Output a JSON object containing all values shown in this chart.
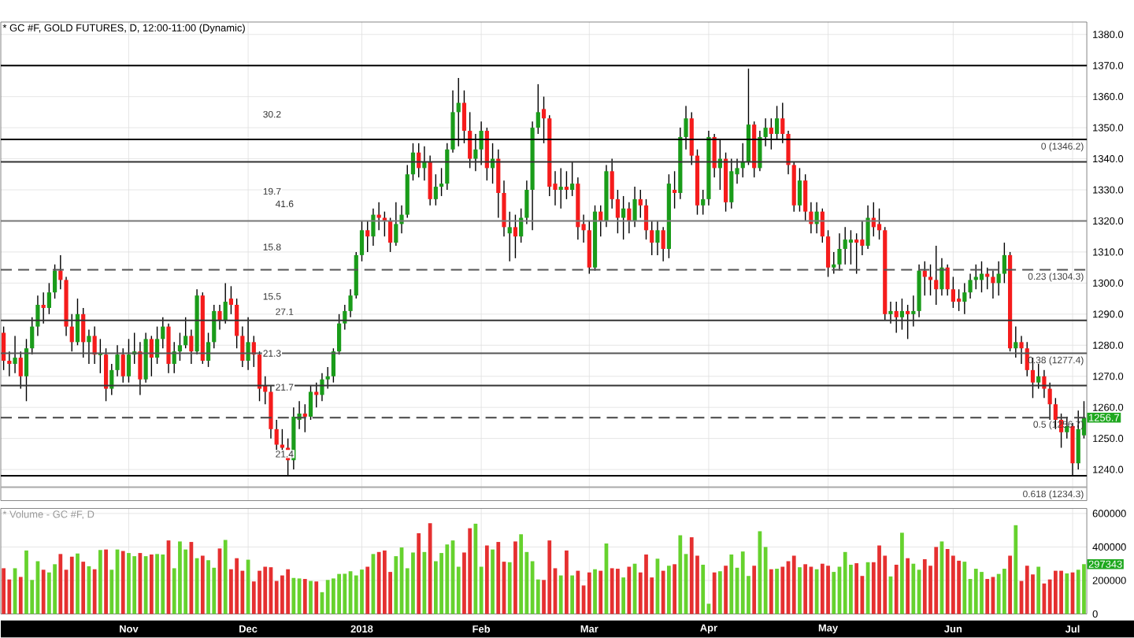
{
  "chart_data": [
    {
      "type": "candlestick",
      "title": "* GC #F, GOLD FUTURES, D, 12:00-11:00 (Dynamic)",
      "categories": [
        null,
        null,
        null,
        null,
        null,
        null,
        null,
        null,
        null,
        null,
        null,
        null,
        null,
        null,
        null,
        null,
        null,
        null,
        null,
        null,
        null,
        null,
        null,
        null,
        null,
        null,
        null,
        null,
        null,
        null,
        null,
        null,
        null,
        null,
        null,
        null,
        null,
        null,
        null,
        null,
        null,
        null,
        null,
        null,
        null,
        null,
        null,
        null,
        null,
        null,
        null,
        null,
        null,
        null,
        null,
        null,
        null,
        null,
        null,
        null,
        null,
        null,
        null,
        null,
        null,
        null,
        null,
        null,
        null,
        null,
        null,
        null,
        null,
        null,
        null,
        null,
        null,
        null,
        null,
        null,
        null,
        null,
        null,
        null,
        null,
        null,
        null,
        null,
        null,
        null,
        null,
        null,
        null,
        null,
        null,
        null,
        null,
        null,
        null,
        null,
        null,
        null,
        null,
        null,
        null,
        null,
        null,
        null,
        null,
        null,
        null,
        null,
        null,
        null,
        null,
        null,
        null,
        null,
        null,
        null,
        null,
        null,
        null,
        null,
        null,
        null,
        null,
        null,
        null,
        null,
        null,
        null,
        null,
        null,
        null,
        null,
        null,
        null,
        null,
        null,
        null,
        null,
        null,
        null,
        null,
        null,
        null,
        null,
        null,
        null,
        null,
        null,
        null,
        null,
        null,
        null,
        null,
        null,
        null,
        null,
        null,
        null,
        null,
        null,
        null,
        null,
        null,
        null,
        null,
        null,
        null,
        null,
        null,
        null,
        null,
        null,
        null,
        null,
        null,
        null,
        null,
        null,
        null,
        null,
        null,
        null,
        null,
        null,
        null,
        null,
        null
      ],
      "ohlc": [
        [
          1284,
          1286,
          1272,
          1275
        ],
        [
          1275,
          1278,
          1270,
          1274
        ],
        [
          1274,
          1283,
          1271,
          1276
        ],
        [
          1276,
          1278,
          1266,
          1270
        ],
        [
          1270,
          1282,
          1262,
          1279
        ],
        [
          1279,
          1289,
          1277,
          1286
        ],
        [
          1286,
          1296,
          1283,
          1293
        ],
        [
          1293,
          1297,
          1287,
          1292
        ],
        [
          1292,
          1300,
          1290,
          1297
        ],
        [
          1297,
          1306,
          1295,
          1304
        ],
        [
          1304,
          1309,
          1298,
          1301
        ],
        [
          1301,
          1302,
          1283,
          1286
        ],
        [
          1286,
          1290,
          1278,
          1281
        ],
        [
          1281,
          1295,
          1280,
          1290
        ],
        [
          1290,
          1292,
          1276,
          1281
        ],
        [
          1281,
          1285,
          1274,
          1283
        ],
        [
          1283,
          1286,
          1274,
          1277
        ],
        [
          1277,
          1282,
          1271,
          1277
        ],
        [
          1277,
          1279,
          1262,
          1266
        ],
        [
          1266,
          1274,
          1264,
          1272
        ],
        [
          1272,
          1280,
          1270,
          1277
        ],
        [
          1277,
          1279,
          1268,
          1270
        ],
        [
          1270,
          1282,
          1268,
          1277
        ],
        [
          1277,
          1284,
          1274,
          1278
        ],
        [
          1278,
          1281,
          1264,
          1269
        ],
        [
          1269,
          1284,
          1268,
          1282
        ],
        [
          1282,
          1283,
          1270,
          1276
        ],
        [
          1276,
          1286,
          1274,
          1282
        ],
        [
          1282,
          1289,
          1279,
          1286
        ],
        [
          1286,
          1287,
          1271,
          1274
        ],
        [
          1274,
          1281,
          1271,
          1278
        ],
        [
          1278,
          1284,
          1275,
          1280
        ],
        [
          1280,
          1289,
          1279,
          1283
        ],
        [
          1283,
          1285,
          1274,
          1278
        ],
        [
          1278,
          1298,
          1277,
          1296
        ],
        [
          1296,
          1297,
          1274,
          1275
        ],
        [
          1275,
          1284,
          1273,
          1281
        ],
        [
          1281,
          1293,
          1279,
          1291
        ],
        [
          1291,
          1293,
          1285,
          1288
        ],
        [
          1288,
          1300,
          1287,
          1294
        ],
        [
          1295,
          1299,
          1290,
          1293
        ],
        [
          1293,
          1295,
          1279,
          1283
        ],
        [
          1283,
          1286,
          1273,
          1275
        ],
        [
          1275,
          1289,
          1272,
          1281
        ],
        [
          1281,
          1283,
          1273,
          1277
        ],
        [
          1277,
          1278,
          1262,
          1266
        ],
        [
          1267,
          1270,
          1261,
          1265
        ],
        [
          1265,
          1267,
          1250,
          1253
        ],
        [
          1253,
          1256,
          1245,
          1248
        ],
        [
          1248,
          1253,
          1245,
          1247
        ],
        [
          1247,
          1250,
          1238,
          1243
        ],
        [
          1243,
          1260,
          1240,
          1257
        ],
        [
          1256,
          1262,
          1253,
          1258
        ],
        [
          1258,
          1261,
          1252,
          1257
        ],
        [
          1257,
          1267,
          1256,
          1265
        ],
        [
          1265,
          1268,
          1260,
          1264
        ],
        [
          1264,
          1271,
          1262,
          1269
        ],
        [
          1269,
          1273,
          1266,
          1270
        ],
        [
          1270,
          1279,
          1268,
          1278
        ],
        [
          1278,
          1290,
          1277,
          1287
        ],
        [
          1287,
          1293,
          1285,
          1291
        ],
        [
          1291,
          1298,
          1289,
          1296
        ],
        [
          1296,
          1310,
          1295,
          1309
        ],
        [
          1309,
          1320,
          1307,
          1317
        ],
        [
          1317,
          1320,
          1310,
          1315
        ],
        [
          1315,
          1324,
          1312,
          1322
        ],
        [
          1322,
          1326,
          1317,
          1321
        ],
        [
          1321,
          1323,
          1315,
          1320
        ],
        [
          1320,
          1321,
          1310,
          1313
        ],
        [
          1313,
          1326,
          1312,
          1319
        ],
        [
          1319,
          1325,
          1316,
          1322
        ],
        [
          1322,
          1338,
          1321,
          1335
        ],
        [
          1335,
          1345,
          1333,
          1342
        ],
        [
          1342,
          1345,
          1334,
          1337
        ],
        [
          1337,
          1344,
          1333,
          1339
        ],
        [
          1339,
          1341,
          1325,
          1327
        ],
        [
          1327,
          1335,
          1325,
          1331
        ],
        [
          1331,
          1337,
          1328,
          1332
        ],
        [
          1332,
          1345,
          1330,
          1343
        ],
        [
          1343,
          1362,
          1342,
          1355
        ],
        [
          1355,
          1366,
          1344,
          1358
        ],
        [
          1358,
          1362,
          1345,
          1349
        ],
        [
          1349,
          1355,
          1337,
          1340
        ],
        [
          1340,
          1348,
          1336,
          1343
        ],
        [
          1343,
          1352,
          1338,
          1349
        ],
        [
          1349,
          1350,
          1333,
          1337
        ],
        [
          1337,
          1345,
          1332,
          1340
        ],
        [
          1340,
          1343,
          1321,
          1329
        ],
        [
          1329,
          1333,
          1315,
          1318
        ],
        [
          1316,
          1323,
          1307,
          1318
        ],
        [
          1318,
          1322,
          1308,
          1315
        ],
        [
          1315,
          1324,
          1313,
          1321
        ],
        [
          1321,
          1333,
          1319,
          1330
        ],
        [
          1330,
          1352,
          1317,
          1350
        ],
        [
          1350,
          1364,
          1348,
          1355
        ],
        [
          1356,
          1360,
          1345,
          1353
        ],
        [
          1353,
          1354,
          1328,
          1331
        ],
        [
          1332,
          1336,
          1325,
          1330
        ],
        [
          1330,
          1337,
          1324,
          1331
        ],
        [
          1331,
          1336,
          1327,
          1330
        ],
        [
          1330,
          1339,
          1328,
          1332
        ],
        [
          1332,
          1334,
          1314,
          1318
        ],
        [
          1319,
          1322,
          1313,
          1317
        ],
        [
          1317,
          1320,
          1303,
          1305
        ],
        [
          1305,
          1325,
          1304,
          1323
        ],
        [
          1323,
          1325,
          1315,
          1320
        ],
        [
          1320,
          1338,
          1318,
          1336
        ],
        [
          1336,
          1340,
          1324,
          1327
        ],
        [
          1327,
          1330,
          1316,
          1321
        ],
        [
          1321,
          1328,
          1314,
          1324
        ],
        [
          1324,
          1326,
          1316,
          1320
        ],
        [
          1320,
          1331,
          1318,
          1327
        ],
        [
          1327,
          1330,
          1321,
          1325
        ],
        [
          1325,
          1327,
          1314,
          1317
        ],
        [
          1317,
          1320,
          1309,
          1313
        ],
        [
          1313,
          1320,
          1309,
          1317
        ],
        [
          1317,
          1318,
          1307,
          1311
        ],
        [
          1311,
          1335,
          1308,
          1332
        ],
        [
          1330,
          1336,
          1324,
          1329
        ],
        [
          1329,
          1350,
          1327,
          1347
        ],
        [
          1347,
          1357,
          1343,
          1353
        ],
        [
          1353,
          1355,
          1338,
          1341
        ],
        [
          1341,
          1343,
          1322,
          1325
        ],
        [
          1325,
          1330,
          1322,
          1327
        ],
        [
          1327,
          1349,
          1325,
          1347
        ],
        [
          1347,
          1348,
          1334,
          1337
        ],
        [
          1337,
          1346,
          1330,
          1340
        ],
        [
          1340,
          1342,
          1323,
          1326
        ],
        [
          1326,
          1340,
          1324,
          1336
        ],
        [
          1335,
          1340,
          1332,
          1337
        ],
        [
          1337,
          1345,
          1334,
          1339
        ],
        [
          1339,
          1369,
          1338,
          1351
        ],
        [
          1351,
          1352,
          1334,
          1337
        ],
        [
          1337,
          1349,
          1336,
          1347
        ],
        [
          1347,
          1353,
          1344,
          1350
        ],
        [
          1350,
          1353,
          1343,
          1348
        ],
        [
          1348,
          1357,
          1346,
          1353
        ],
        [
          1353,
          1358,
          1345,
          1348
        ],
        [
          1348,
          1349,
          1335,
          1338
        ],
        [
          1338,
          1339,
          1323,
          1325
        ],
        [
          1325,
          1337,
          1323,
          1333
        ],
        [
          1333,
          1335,
          1320,
          1323
        ],
        [
          1323,
          1326,
          1316,
          1319
        ],
        [
          1319,
          1326,
          1316,
          1323
        ],
        [
          1323,
          1324,
          1313,
          1315
        ],
        [
          1315,
          1317,
          1302,
          1305
        ],
        [
          1305,
          1310,
          1303,
          1306
        ],
        [
          1306,
          1316,
          1304,
          1311
        ],
        [
          1311,
          1318,
          1306,
          1314
        ],
        [
          1313,
          1317,
          1306,
          1314
        ],
        [
          1314,
          1316,
          1303,
          1313
        ],
        [
          1314,
          1320,
          1309,
          1312
        ],
        [
          1312,
          1325,
          1311,
          1321
        ],
        [
          1321,
          1326,
          1315,
          1318
        ],
        [
          1319,
          1324,
          1314,
          1317
        ],
        [
          1317,
          1318,
          1288,
          1290
        ],
        [
          1290,
          1294,
          1287,
          1291
        ],
        [
          1291,
          1294,
          1284,
          1289
        ],
        [
          1289,
          1295,
          1285,
          1291
        ],
        [
          1291,
          1293,
          1282,
          1290
        ],
        [
          1290,
          1296,
          1286,
          1291
        ],
        [
          1291,
          1306,
          1289,
          1304
        ],
        [
          1304,
          1307,
          1296,
          1302
        ],
        [
          1302,
          1306,
          1296,
          1301
        ],
        [
          1301,
          1312,
          1293,
          1298
        ],
        [
          1298,
          1308,
          1296,
          1305
        ],
        [
          1305,
          1306,
          1296,
          1298
        ],
        [
          1298,
          1302,
          1292,
          1294
        ],
        [
          1295,
          1298,
          1291,
          1294
        ],
        [
          1294,
          1300,
          1290,
          1297
        ],
        [
          1297,
          1303,
          1295,
          1301
        ],
        [
          1301,
          1306,
          1298,
          1302
        ],
        [
          1301,
          1307,
          1297,
          1303
        ],
        [
          1303,
          1305,
          1298,
          1302
        ],
        [
          1302,
          1304,
          1295,
          1300
        ],
        [
          1300,
          1307,
          1296,
          1303
        ],
        [
          1303,
          1313,
          1300,
          1309
        ],
        [
          1309,
          1310,
          1278,
          1279
        ],
        [
          1279,
          1286,
          1276,
          1281
        ],
        [
          1281,
          1283,
          1274,
          1279
        ],
        [
          1279,
          1281,
          1270,
          1272
        ],
        [
          1272,
          1276,
          1263,
          1268
        ],
        [
          1268,
          1274,
          1266,
          1270
        ],
        [
          1270,
          1272,
          1263,
          1266
        ],
        [
          1266,
          1268,
          1256,
          1261
        ],
        [
          1261,
          1263,
          1253,
          1256
        ],
        [
          1256,
          1258,
          1247,
          1252
        ],
        [
          1252,
          1257,
          1250,
          1254
        ],
        [
          1254,
          1255,
          1238,
          1242
        ],
        [
          1242,
          1259,
          1240,
          1253
        ],
        [
          1251,
          1262,
          1250,
          1256.7
        ]
      ],
      "colors": [
        "#f51c1c",
        "#f51c1c",
        "#1a9c1a",
        "#f51c1c",
        "#1a9c1a",
        "#1a9c1a",
        "#1a9c1a",
        "#f51c1c",
        "#1a9c1a",
        "#1a9c1a",
        "#f51c1c",
        "#f51c1c",
        "#f51c1c",
        "#1a9c1a",
        "#f51c1c",
        "#1a9c1a",
        "#f51c1c",
        "#1a9c1a",
        "#f51c1c",
        "#1a9c1a",
        "#1a9c1a",
        "#f51c1c",
        "#1a9c1a",
        "#1a9c1a",
        "#f51c1c",
        "#1a9c1a",
        "#f51c1c",
        "#1a9c1a",
        "#1a9c1a",
        "#f51c1c",
        "#1a9c1a",
        "#1a9c1a",
        "#1a9c1a",
        "#f51c1c",
        "#1a9c1a",
        "#f51c1c",
        "#1a9c1a",
        "#1a9c1a",
        "#f51c1c",
        "#1a9c1a",
        "#f51c1c",
        "#f51c1c",
        "#f51c1c",
        "#1a9c1a",
        "#f51c1c",
        "#f51c1c",
        "#f51c1c",
        "#f51c1c",
        "#f51c1c",
        "#f51c1c",
        "#f51c1c",
        "#1a9c1a",
        "#1a9c1a",
        "#f51c1c",
        "#1a9c1a",
        "#f51c1c",
        "#1a9c1a",
        "#1a9c1a",
        "#1a9c1a",
        "#1a9c1a",
        "#1a9c1a",
        "#1a9c1a",
        "#1a9c1a",
        "#1a9c1a",
        "#f51c1c",
        "#1a9c1a",
        "#f51c1c",
        "#f51c1c",
        "#f51c1c",
        "#1a9c1a",
        "#1a9c1a",
        "#1a9c1a",
        "#1a9c1a",
        "#f51c1c",
        "#1a9c1a",
        "#f51c1c",
        "#1a9c1a",
        "#1a9c1a",
        "#1a9c1a",
        "#1a9c1a",
        "#1a9c1a",
        "#f51c1c",
        "#f51c1c",
        "#1a9c1a",
        "#1a9c1a",
        "#f51c1c",
        "#1a9c1a",
        "#f51c1c",
        "#f51c1c",
        "#1a9c1a",
        "#f51c1c",
        "#1a9c1a",
        "#1a9c1a",
        "#1a9c1a",
        "#1a9c1a",
        "#f51c1c",
        "#f51c1c",
        "#f51c1c",
        "#1a9c1a",
        "#f51c1c",
        "#1a9c1a",
        "#f51c1c",
        "#f51c1c",
        "#f51c1c",
        "#1a9c1a",
        "#f51c1c",
        "#1a9c1a",
        "#f51c1c",
        "#f51c1c",
        "#1a9c1a",
        "#f51c1c",
        "#1a9c1a",
        "#f51c1c",
        "#f51c1c",
        "#f51c1c",
        "#1a9c1a",
        "#f51c1c",
        "#1a9c1a",
        "#f51c1c",
        "#1a9c1a",
        "#1a9c1a",
        "#f51c1c",
        "#f51c1c",
        "#1a9c1a",
        "#1a9c1a",
        "#f51c1c",
        "#1a9c1a",
        "#f51c1c",
        "#1a9c1a",
        "#1a9c1a",
        "#1a9c1a",
        "#1a9c1a",
        "#f51c1c",
        "#1a9c1a",
        "#1a9c1a",
        "#f51c1c",
        "#1a9c1a",
        "#f51c1c",
        "#f51c1c",
        "#f51c1c",
        "#1a9c1a",
        "#f51c1c",
        "#f51c1c",
        "#1a9c1a",
        "#f51c1c",
        "#f51c1c",
        "#1a9c1a",
        "#1a9c1a",
        "#1a9c1a",
        "#1a9c1a",
        "#f51c1c",
        "#f51c1c",
        "#1a9c1a",
        "#f51c1c",
        "#f51c1c",
        "#f51c1c",
        "#1a9c1a",
        "#f51c1c",
        "#1a9c1a",
        "#f51c1c",
        "#1a9c1a",
        "#1a9c1a",
        "#f51c1c",
        "#f51c1c",
        "#f51c1c",
        "#1a9c1a",
        "#f51c1c",
        "#f51c1c",
        "#f51c1c",
        "#1a9c1a",
        "#1a9c1a",
        "#1a9c1a",
        "#1a9c1a",
        "#f51c1c",
        "#f51c1c",
        "#1a9c1a",
        "#1a9c1a",
        "#f51c1c",
        "#1a9c1a",
        "#f51c1c",
        "#f51c1c",
        "#f51c1c",
        "#1a9c1a",
        "#f51c1c",
        "#f51c1c",
        "#f51c1c",
        "#f51c1c",
        "#1a9c1a",
        "#f51c1c",
        "#1a9c1a",
        "#1a9c1a"
      ],
      "ylim": [
        1230,
        1384
      ],
      "yticks": [
        {
          "value": 1240,
          "label": "1240.0"
        },
        {
          "value": 1250,
          "label": "1250.0"
        },
        {
          "value": 1260,
          "label": "1260.0"
        },
        {
          "value": 1270,
          "label": "1270.0"
        },
        {
          "value": 1280,
          "label": "1280.0"
        },
        {
          "value": 1290,
          "label": "1290.0"
        },
        {
          "value": 1300,
          "label": "1300.0"
        },
        {
          "value": 1310,
          "label": "1310.0"
        },
        {
          "value": 1320,
          "label": "1320.0"
        },
        {
          "value": 1330,
          "label": "1330.0"
        },
        {
          "value": 1340,
          "label": "1340.0"
        },
        {
          "value": 1350,
          "label": "1350.0"
        },
        {
          "value": 1360,
          "label": "1360.0"
        },
        {
          "value": 1370,
          "label": "1370.0"
        },
        {
          "value": 1380,
          "label": "1380.0"
        }
      ],
      "grid": true,
      "tick_labels": "y",
      "ref_lines": [
        {
          "axis": "y",
          "value": 1370,
          "color": "#000000"
        },
        {
          "axis": "y",
          "value": 1346.2,
          "label": "0 (1346.2)",
          "color": "#000000"
        },
        {
          "axis": "y",
          "value": 1339,
          "color": "#333333"
        },
        {
          "axis": "y",
          "value": 1320,
          "color": "#777777"
        },
        {
          "axis": "y",
          "value": 1304.3,
          "label": "0.23 (1304.3)",
          "color": "#555555",
          "line_style": "dashed"
        },
        {
          "axis": "y",
          "value": 1288,
          "color": "#333333"
        },
        {
          "axis": "y",
          "value": 1277.4,
          "label": "0.38 (1277.4)",
          "color": "#555555"
        },
        {
          "axis": "y",
          "value": 1267,
          "color": "#333333"
        },
        {
          "axis": "y",
          "value": 1256.7,
          "label": "0.5 (1256.7)",
          "color": "#444444",
          "line_style": "dashed"
        },
        {
          "axis": "y",
          "value": 1238,
          "color": "#000000"
        },
        {
          "axis": "y",
          "value": 1234.3,
          "label": "0.618 (1234.3)",
          "color": "#aaaaaa"
        }
      ],
      "annotations": [
        "30.2",
        "19.7",
        "41.6",
        "15.8",
        "15.5",
        "27.1",
        "21.3",
        "21.7",
        "21.4",
        "1256.7"
      ]
    },
    {
      "type": "bar",
      "title": "* Volume - GC #F, D",
      "categories": [
        null,
        null,
        null,
        null,
        null,
        null,
        null,
        null,
        null,
        null,
        null,
        null,
        null,
        null,
        null,
        null,
        null,
        null,
        null,
        null,
        null,
        null,
        "Nov",
        null,
        null,
        null,
        null,
        null,
        null,
        null,
        null,
        null,
        null,
        null,
        null,
        null,
        null,
        null,
        null,
        null,
        null,
        null,
        null,
        "Dec",
        null,
        null,
        null,
        null,
        null,
        null,
        null,
        null,
        null,
        null,
        null,
        null,
        null,
        null,
        null,
        null,
        null,
        null,
        null,
        "2018",
        null,
        null,
        null,
        null,
        null,
        null,
        null,
        null,
        null,
        null,
        null,
        null,
        null,
        null,
        null,
        null,
        null,
        null,
        null,
        null,
        "Feb",
        null,
        null,
        null,
        null,
        null,
        null,
        null,
        null,
        null,
        null,
        null,
        null,
        null,
        null,
        null,
        null,
        null,
        null,
        "Mar",
        null,
        null,
        null,
        null,
        null,
        null,
        null,
        null,
        null,
        null,
        null,
        null,
        null,
        null,
        null,
        null,
        null,
        null,
        null,
        null,
        "Apr",
        null,
        null,
        null,
        null,
        null,
        null,
        null,
        null,
        null,
        null,
        null,
        null,
        null,
        null,
        null,
        null,
        null,
        null,
        null,
        null,
        "May",
        null,
        null,
        null,
        null,
        null,
        null,
        null,
        null,
        null,
        null,
        null,
        null,
        null,
        null,
        null,
        null,
        null,
        null,
        null,
        null,
        null,
        "Jun",
        null,
        null,
        null,
        null,
        null,
        null,
        null,
        null,
        null,
        null,
        null,
        null,
        null,
        null,
        null,
        null,
        null,
        null,
        null,
        null,
        "Jul",
        null,
        null
      ],
      "values": [
        273000,
        206000,
        273000,
        221000,
        379000,
        203000,
        315000,
        264000,
        248000,
        297000,
        358000,
        264000,
        342000,
        361000,
        312000,
        285000,
        267000,
        382000,
        385000,
        264000,
        385000,
        376000,
        364000,
        345000,
        364000,
        345000,
        355000,
        358000,
        355000,
        439000,
        273000,
        433000,
        385000,
        430000,
        333000,
        348000,
        321000,
        276000,
        391000,
        442000,
        267000,
        333000,
        258000,
        324000,
        194000,
        258000,
        282000,
        279000,
        197000,
        230000,
        267000,
        215000,
        212000,
        209000,
        197000,
        194000,
        130000,
        203000,
        212000,
        239000,
        240000,
        255000,
        230000,
        265000,
        282000,
        358000,
        370000,
        379000,
        251000,
        345000,
        397000,
        273000,
        367000,
        482000,
        370000,
        542000,
        315000,
        364000,
        415000,
        439000,
        282000,
        367000,
        512000,
        539000,
        282000,
        409000,
        385000,
        430000,
        312000,
        309000,
        433000,
        476000,
        370000,
        315000,
        206000,
        203000,
        439000,
        273000,
        230000,
        379000,
        230000,
        258000,
        170000,
        248000,
        267000,
        258000,
        421000,
        273000,
        270000,
        218000,
        282000,
        300000,
        248000,
        355000,
        218000,
        330000,
        258000,
        288000,
        297000,
        470000,
        358000,
        458000,
        348000,
        294000,
        61000,
        248000,
        255000,
        288000,
        355000,
        276000,
        373000,
        227000,
        288000,
        494000,
        400000,
        267000,
        270000,
        282000,
        315000,
        348000,
        279000,
        297000,
        282000,
        267000,
        300000,
        288000,
        251000,
        282000,
        370000,
        294000,
        303000,
        227000,
        309000,
        309000,
        409000,
        348000,
        224000,
        294000,
        485000,
        333000,
        300000,
        264000,
        327000,
        288000,
        400000,
        433000,
        388000,
        348000,
        318000,
        312000,
        209000,
        270000,
        251000,
        209000,
        221000,
        239000,
        270000,
        348000,
        530000,
        197000,
        288000,
        236000,
        282000,
        182000,
        206000,
        258000,
        258000,
        242000,
        248000,
        264000,
        297343
      ],
      "colors": [
        "#e53030",
        "#e53030",
        "#66d22e",
        "#e53030",
        "#66d22e",
        "#66d22e",
        "#66d22e",
        "#e53030",
        "#66d22e",
        "#66d22e",
        "#e53030",
        "#e53030",
        "#e53030",
        "#66d22e",
        "#e53030",
        "#66d22e",
        "#e53030",
        "#66d22e",
        "#e53030",
        "#66d22e",
        "#66d22e",
        "#e53030",
        "#66d22e",
        "#66d22e",
        "#e53030",
        "#66d22e",
        "#e53030",
        "#66d22e",
        "#66d22e",
        "#e53030",
        "#66d22e",
        "#66d22e",
        "#66d22e",
        "#e53030",
        "#66d22e",
        "#e53030",
        "#66d22e",
        "#66d22e",
        "#e53030",
        "#66d22e",
        "#e53030",
        "#e53030",
        "#e53030",
        "#66d22e",
        "#e53030",
        "#e53030",
        "#e53030",
        "#e53030",
        "#e53030",
        "#e53030",
        "#e53030",
        "#66d22e",
        "#66d22e",
        "#e53030",
        "#66d22e",
        "#e53030",
        "#66d22e",
        "#66d22e",
        "#66d22e",
        "#66d22e",
        "#66d22e",
        "#66d22e",
        "#66d22e",
        "#66d22e",
        "#e53030",
        "#66d22e",
        "#e53030",
        "#e53030",
        "#e53030",
        "#66d22e",
        "#66d22e",
        "#66d22e",
        "#66d22e",
        "#e53030",
        "#66d22e",
        "#e53030",
        "#66d22e",
        "#66d22e",
        "#66d22e",
        "#66d22e",
        "#66d22e",
        "#e53030",
        "#e53030",
        "#66d22e",
        "#66d22e",
        "#e53030",
        "#66d22e",
        "#e53030",
        "#e53030",
        "#66d22e",
        "#e53030",
        "#66d22e",
        "#66d22e",
        "#66d22e",
        "#66d22e",
        "#e53030",
        "#e53030",
        "#e53030",
        "#66d22e",
        "#e53030",
        "#66d22e",
        "#e53030",
        "#e53030",
        "#e53030",
        "#66d22e",
        "#e53030",
        "#66d22e",
        "#e53030",
        "#e53030",
        "#66d22e",
        "#e53030",
        "#66d22e",
        "#e53030",
        "#e53030",
        "#e53030",
        "#66d22e",
        "#e53030",
        "#66d22e",
        "#e53030",
        "#66d22e",
        "#66d22e",
        "#e53030",
        "#e53030",
        "#66d22e",
        "#66d22e",
        "#e53030",
        "#66d22e",
        "#e53030",
        "#66d22e",
        "#66d22e",
        "#66d22e",
        "#66d22e",
        "#e53030",
        "#66d22e",
        "#66d22e",
        "#e53030",
        "#66d22e",
        "#e53030",
        "#e53030",
        "#e53030",
        "#66d22e",
        "#e53030",
        "#e53030",
        "#66d22e",
        "#e53030",
        "#e53030",
        "#66d22e",
        "#66d22e",
        "#66d22e",
        "#66d22e",
        "#e53030",
        "#e53030",
        "#66d22e",
        "#e53030",
        "#e53030",
        "#e53030",
        "#66d22e",
        "#e53030",
        "#66d22e",
        "#e53030",
        "#66d22e",
        "#66d22e",
        "#e53030",
        "#e53030",
        "#e53030",
        "#66d22e",
        "#e53030",
        "#e53030",
        "#e53030",
        "#66d22e",
        "#66d22e",
        "#66d22e",
        "#66d22e",
        "#e53030",
        "#e53030",
        "#66d22e",
        "#66d22e",
        "#e53030",
        "#66d22e",
        "#e53030",
        "#e53030",
        "#e53030",
        "#66d22e",
        "#e53030",
        "#e53030",
        "#e53030",
        "#e53030",
        "#66d22e",
        "#e53030",
        "#66d22e",
        "#66d22e"
      ],
      "ylim": [
        0,
        630000
      ],
      "yticks": [
        0,
        200000,
        400000,
        600000
      ],
      "grid": true,
      "annotations": [
        "297343"
      ]
    }
  ]
}
